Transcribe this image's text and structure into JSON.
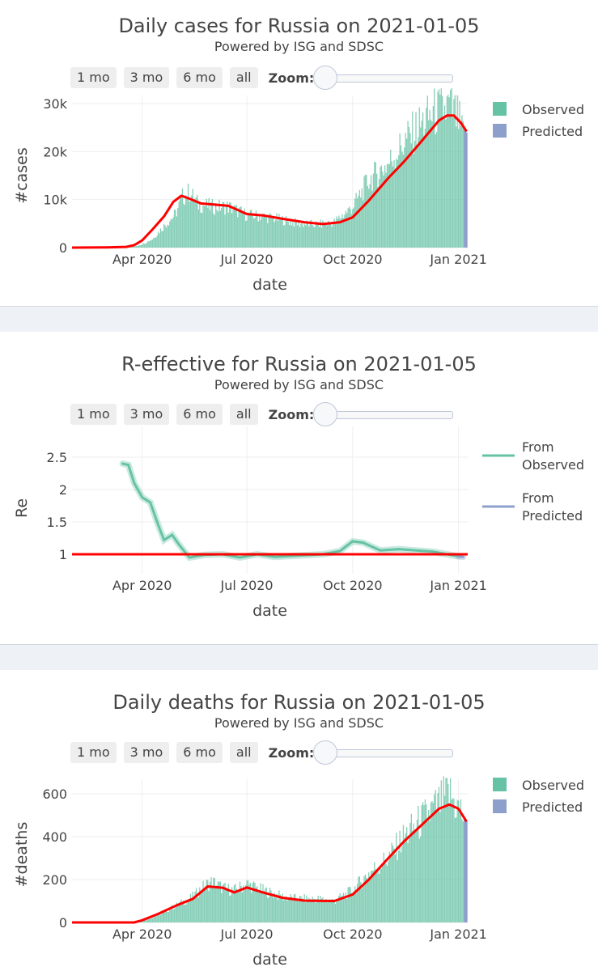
{
  "controls": {
    "buttons": [
      "1 mo",
      "3 mo",
      "6 mo",
      "all"
    ],
    "zoom_label": "Zoom:"
  },
  "colors": {
    "observed": "#66c2a5",
    "predicted": "#8da0cb",
    "trend": "#ff0000"
  },
  "chart_data": [
    {
      "type": "bar",
      "title": "Daily cases for Russia on 2021-01-05",
      "subtitle": "Powered by ISG and SDSC",
      "xlabel": "date",
      "ylabel": "#cases",
      "x_ticks": [
        "Apr 2020",
        "Jul 2020",
        "Oct 2020",
        "Jan 2021"
      ],
      "x_range": [
        "2020-01-31",
        "2021-01-09"
      ],
      "y_ticks": [
        0,
        10000,
        20000,
        30000
      ],
      "y_tick_labels": [
        "0",
        "10k",
        "20k",
        "30k"
      ],
      "ylim": [
        0,
        30000
      ],
      "legend": [
        "Observed",
        "Predicted"
      ],
      "legend_position": "top-right",
      "series": [
        {
          "name": "Observed",
          "kind": "bars",
          "color": "#66c2a5",
          "points": [
            [
              "2020-01-31",
              0
            ],
            [
              "2020-03-01",
              0
            ],
            [
              "2020-03-15",
              20
            ],
            [
              "2020-03-25",
              200
            ],
            [
              "2020-04-01",
              700
            ],
            [
              "2020-04-10",
              1800
            ],
            [
              "2020-04-20",
              4500
            ],
            [
              "2020-04-30",
              7000
            ],
            [
              "2020-05-06",
              10500
            ],
            [
              "2020-05-12",
              11500
            ],
            [
              "2020-05-20",
              9000
            ],
            [
              "2020-06-01",
              8500
            ],
            [
              "2020-06-15",
              8500
            ],
            [
              "2020-07-01",
              6800
            ],
            [
              "2020-07-15",
              6500
            ],
            [
              "2020-08-01",
              5800
            ],
            [
              "2020-08-15",
              5000
            ],
            [
              "2020-09-01",
              4800
            ],
            [
              "2020-09-15",
              5300
            ],
            [
              "2020-10-01",
              8500
            ],
            [
              "2020-10-15",
              14000
            ],
            [
              "2020-11-01",
              17500
            ],
            [
              "2020-11-15",
              22000
            ],
            [
              "2020-12-01",
              26000
            ],
            [
              "2020-12-10",
              28000
            ],
            [
              "2020-12-20",
              28500
            ],
            [
              "2020-12-24",
              29500
            ],
            [
              "2021-01-01",
              26500
            ],
            [
              "2021-01-05",
              23000
            ]
          ]
        },
        {
          "name": "Predicted",
          "kind": "bars",
          "color": "#8da0cb",
          "points": [
            [
              "2021-01-06",
              24500
            ],
            [
              "2021-01-07",
              24200
            ],
            [
              "2021-01-08",
              24000
            ]
          ]
        }
      ],
      "trend": {
        "color": "#ff0000",
        "points": [
          [
            "2020-01-31",
            0
          ],
          [
            "2020-03-01",
            50
          ],
          [
            "2020-03-18",
            150
          ],
          [
            "2020-03-25",
            500
          ],
          [
            "2020-04-01",
            1500
          ],
          [
            "2020-04-10",
            3800
          ],
          [
            "2020-04-20",
            6500
          ],
          [
            "2020-04-28",
            9500
          ],
          [
            "2020-05-05",
            10800
          ],
          [
            "2020-05-12",
            10200
          ],
          [
            "2020-05-22",
            9200
          ],
          [
            "2020-06-15",
            8700
          ],
          [
            "2020-07-01",
            7000
          ],
          [
            "2020-07-15",
            6700
          ],
          [
            "2020-08-01",
            6000
          ],
          [
            "2020-08-20",
            5300
          ],
          [
            "2020-09-05",
            4900
          ],
          [
            "2020-09-20",
            5300
          ],
          [
            "2020-10-01",
            6300
          ],
          [
            "2020-10-15",
            9800
          ],
          [
            "2020-11-01",
            14500
          ],
          [
            "2020-11-15",
            18000
          ],
          [
            "2020-12-01",
            22500
          ],
          [
            "2020-12-15",
            26500
          ],
          [
            "2020-12-22",
            27500
          ],
          [
            "2020-12-28",
            27500
          ],
          [
            "2021-01-03",
            26000
          ],
          [
            "2021-01-08",
            24200
          ]
        ]
      }
    },
    {
      "type": "line",
      "title": "R-effective for Russia on 2021-01-05",
      "subtitle": "Powered by ISG and SDSC",
      "xlabel": "date",
      "ylabel": "Re",
      "x_ticks": [
        "Apr 2020",
        "Jul 2020",
        "Oct 2020",
        "Jan 2021"
      ],
      "x_range": [
        "2020-01-31",
        "2021-01-09"
      ],
      "y_ticks": [
        1,
        1.5,
        2,
        2.5
      ],
      "y_tick_labels": [
        "1",
        "1.5",
        "2",
        "2.5"
      ],
      "ylim": [
        0.7,
        2.85
      ],
      "legend": [
        "From Observed",
        "From Predicted"
      ],
      "legend_position": "top-right",
      "series": [
        {
          "name": "From Observed",
          "color": "#66c2a5",
          "points": [
            [
              "2020-03-15",
              2.4
            ],
            [
              "2020-03-20",
              2.38
            ],
            [
              "2020-03-25",
              2.1
            ],
            [
              "2020-04-01",
              1.88
            ],
            [
              "2020-04-08",
              1.8
            ],
            [
              "2020-04-15",
              1.45
            ],
            [
              "2020-04-20",
              1.22
            ],
            [
              "2020-04-27",
              1.3
            ],
            [
              "2020-05-03",
              1.15
            ],
            [
              "2020-05-12",
              0.95
            ],
            [
              "2020-05-25",
              0.99
            ],
            [
              "2020-06-10",
              1.0
            ],
            [
              "2020-06-25",
              0.95
            ],
            [
              "2020-07-10",
              1.0
            ],
            [
              "2020-07-25",
              0.96
            ],
            [
              "2020-08-15",
              0.98
            ],
            [
              "2020-09-05",
              1.0
            ],
            [
              "2020-09-20",
              1.05
            ],
            [
              "2020-10-01",
              1.2
            ],
            [
              "2020-10-10",
              1.18
            ],
            [
              "2020-10-25",
              1.06
            ],
            [
              "2020-11-10",
              1.08
            ],
            [
              "2020-11-25",
              1.06
            ],
            [
              "2020-12-10",
              1.04
            ],
            [
              "2020-12-25",
              0.99
            ],
            [
              "2021-01-01",
              0.97
            ]
          ]
        },
        {
          "name": "From Predicted",
          "color": "#8da0cb",
          "points": [
            [
              "2021-01-01",
              0.97
            ],
            [
              "2021-01-05",
              0.96
            ]
          ]
        }
      ],
      "reference_line": {
        "y": 1,
        "color": "#ff0000"
      }
    },
    {
      "type": "bar",
      "title": "Daily deaths for Russia on 2021-01-05",
      "subtitle": "Powered by ISG and SDSC",
      "xlabel": "date",
      "ylabel": "#deaths",
      "x_ticks": [
        "Apr 2020",
        "Jul 2020",
        "Oct 2020",
        "Jan 2021"
      ],
      "x_range": [
        "2020-01-31",
        "2021-01-09"
      ],
      "y_ticks": [
        0,
        200,
        400,
        600
      ],
      "y_tick_labels": [
        "0",
        "200",
        "400",
        "600"
      ],
      "ylim": [
        0,
        630
      ],
      "legend": [
        "Observed",
        "Predicted"
      ],
      "legend_position": "top-right",
      "series": [
        {
          "name": "Observed",
          "kind": "bars",
          "color": "#66c2a5",
          "points": [
            [
              "2020-01-31",
              0
            ],
            [
              "2020-03-20",
              0
            ],
            [
              "2020-04-01",
              5
            ],
            [
              "2020-04-15",
              35
            ],
            [
              "2020-05-01",
              80
            ],
            [
              "2020-05-15",
              120
            ],
            [
              "2020-05-25",
              170
            ],
            [
              "2020-06-01",
              190
            ],
            [
              "2020-06-10",
              160
            ],
            [
              "2020-06-20",
              150
            ],
            [
              "2020-07-01",
              180
            ],
            [
              "2020-07-15",
              150
            ],
            [
              "2020-08-01",
              120
            ],
            [
              "2020-08-15",
              110
            ],
            [
              "2020-09-01",
              110
            ],
            [
              "2020-09-15",
              100
            ],
            [
              "2020-10-01",
              150
            ],
            [
              "2020-10-15",
              230
            ],
            [
              "2020-11-01",
              300
            ],
            [
              "2020-11-15",
              400
            ],
            [
              "2020-12-01",
              480
            ],
            [
              "2020-12-15",
              550
            ],
            [
              "2020-12-24",
              600
            ],
            [
              "2021-01-01",
              530
            ],
            [
              "2021-01-05",
              500
            ]
          ]
        },
        {
          "name": "Predicted",
          "kind": "bars",
          "color": "#8da0cb",
          "points": [
            [
              "2021-01-06",
              480
            ],
            [
              "2021-01-07",
              475
            ],
            [
              "2021-01-08",
              470
            ]
          ]
        }
      ],
      "trend": {
        "color": "#ff0000",
        "points": [
          [
            "2020-01-31",
            0
          ],
          [
            "2020-03-25",
            0
          ],
          [
            "2020-04-01",
            10
          ],
          [
            "2020-04-15",
            40
          ],
          [
            "2020-05-01",
            80
          ],
          [
            "2020-05-15",
            110
          ],
          [
            "2020-05-28",
            168
          ],
          [
            "2020-06-10",
            162
          ],
          [
            "2020-06-20",
            140
          ],
          [
            "2020-07-01",
            163
          ],
          [
            "2020-07-15",
            140
          ],
          [
            "2020-08-01",
            115
          ],
          [
            "2020-08-20",
            102
          ],
          [
            "2020-09-15",
            100
          ],
          [
            "2020-10-01",
            130
          ],
          [
            "2020-10-15",
            200
          ],
          [
            "2020-11-01",
            300
          ],
          [
            "2020-11-15",
            380
          ],
          [
            "2020-12-01",
            460
          ],
          [
            "2020-12-15",
            530
          ],
          [
            "2020-12-24",
            550
          ],
          [
            "2021-01-01",
            530
          ],
          [
            "2021-01-08",
            470
          ]
        ]
      }
    }
  ]
}
